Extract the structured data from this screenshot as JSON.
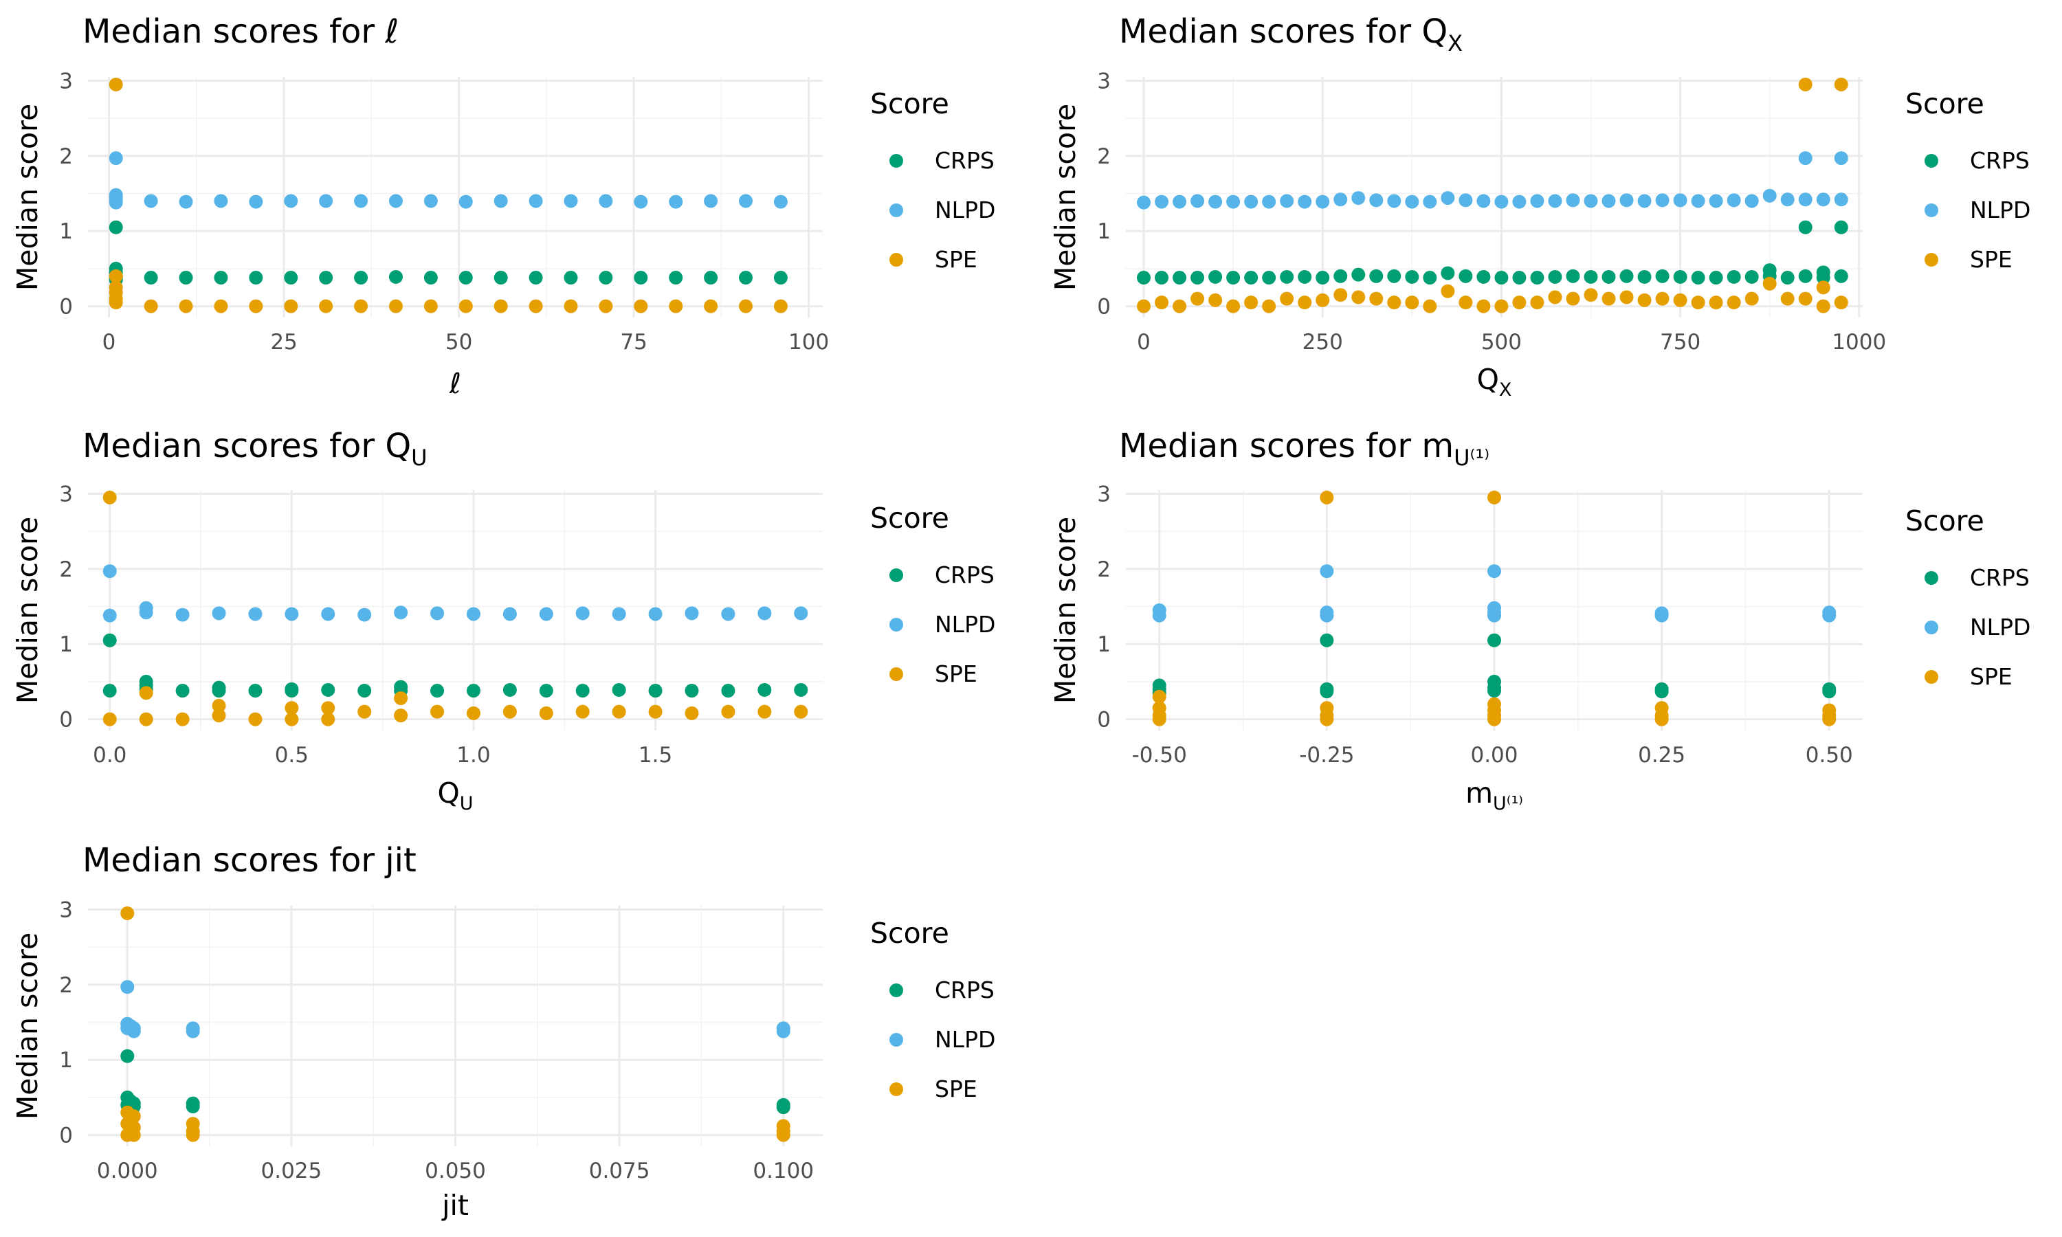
{
  "legend": {
    "title": "Score",
    "items": [
      {
        "label": "CRPS",
        "color": "#009E73"
      },
      {
        "label": "NLPD",
        "color": "#56B4E9"
      },
      {
        "label": "SPE",
        "color": "#E69F00"
      }
    ]
  },
  "chart_data": [
    {
      "type": "scatter",
      "title": "Median scores for ℓ",
      "title_sub": "",
      "xlabel": "ℓ",
      "xlabel_sub": "",
      "ylabel": "Median score",
      "xlim": [
        -3,
        102
      ],
      "ylim": [
        -0.15,
        3.05
      ],
      "xticks": [
        0,
        25,
        50,
        75,
        100
      ],
      "xtick_labels": [
        "0",
        "25",
        "50",
        "75",
        "100"
      ],
      "yticks": [
        0,
        1,
        2,
        3
      ],
      "ytick_labels": [
        "0",
        "1",
        "2",
        "3"
      ],
      "grid": true,
      "legend_position": "right",
      "series": [
        {
          "name": "CRPS",
          "x": [
            1,
            1,
            1,
            1,
            1,
            1,
            6,
            11,
            16,
            21,
            26,
            31,
            36,
            41,
            46,
            51,
            56,
            61,
            66,
            71,
            76,
            81,
            86,
            91,
            96
          ],
          "y": [
            1.05,
            0.5,
            0.45,
            0.4,
            0.38,
            0.35,
            0.38,
            0.38,
            0.38,
            0.38,
            0.38,
            0.38,
            0.38,
            0.39,
            0.38,
            0.38,
            0.38,
            0.38,
            0.38,
            0.38,
            0.38,
            0.38,
            0.38,
            0.38,
            0.38
          ]
        },
        {
          "name": "NLPD",
          "x": [
            1,
            1,
            1,
            1,
            1,
            6,
            11,
            16,
            21,
            26,
            31,
            36,
            41,
            46,
            51,
            56,
            61,
            66,
            71,
            76,
            81,
            86,
            91,
            96
          ],
          "y": [
            1.97,
            1.48,
            1.45,
            1.42,
            1.38,
            1.4,
            1.39,
            1.4,
            1.39,
            1.4,
            1.4,
            1.4,
            1.4,
            1.4,
            1.39,
            1.4,
            1.4,
            1.4,
            1.4,
            1.39,
            1.39,
            1.4,
            1.4,
            1.39
          ]
        },
        {
          "name": "SPE",
          "x": [
            1,
            1,
            1,
            1,
            1,
            1,
            6,
            11,
            16,
            21,
            26,
            31,
            36,
            41,
            46,
            51,
            56,
            61,
            66,
            71,
            76,
            81,
            86,
            91,
            96
          ],
          "y": [
            2.95,
            0.4,
            0.25,
            0.18,
            0.1,
            0.05,
            0.0,
            0.0,
            0.0,
            0.0,
            0.0,
            0.0,
            0.0,
            0.0,
            0.0,
            0.0,
            0.0,
            0.0,
            0.0,
            0.0,
            0.0,
            0.0,
            0.0,
            0.0,
            0.0
          ]
        }
      ]
    },
    {
      "type": "scatter",
      "title": "Median scores for Q",
      "title_sub": "X",
      "xlabel": "Q",
      "xlabel_sub": "X",
      "ylabel": "Median score",
      "xlim": [
        -25,
        1005
      ],
      "ylim": [
        -0.15,
        3.05
      ],
      "xticks": [
        0,
        250,
        500,
        750,
        1000
      ],
      "xtick_labels": [
        "0",
        "250",
        "500",
        "750",
        "1000"
      ],
      "yticks": [
        0,
        1,
        2,
        3
      ],
      "ytick_labels": [
        "0",
        "1",
        "2",
        "3"
      ],
      "grid": true,
      "legend_position": "right",
      "series": [
        {
          "name": "CRPS",
          "x": [
            0,
            25,
            50,
            75,
            100,
            125,
            150,
            175,
            200,
            225,
            250,
            275,
            300,
            325,
            350,
            375,
            400,
            425,
            450,
            475,
            500,
            525,
            550,
            575,
            600,
            625,
            650,
            675,
            700,
            725,
            750,
            775,
            800,
            825,
            850,
            875,
            875,
            900,
            925,
            925,
            950,
            950,
            975,
            975
          ],
          "y": [
            0.38,
            0.38,
            0.38,
            0.38,
            0.39,
            0.38,
            0.38,
            0.38,
            0.39,
            0.39,
            0.38,
            0.4,
            0.42,
            0.4,
            0.4,
            0.39,
            0.38,
            0.44,
            0.4,
            0.39,
            0.38,
            0.38,
            0.38,
            0.39,
            0.4,
            0.39,
            0.39,
            0.4,
            0.39,
            0.4,
            0.39,
            0.38,
            0.38,
            0.39,
            0.39,
            0.48,
            0.4,
            0.38,
            1.05,
            0.4,
            0.45,
            0.38,
            1.05,
            0.4
          ]
        },
        {
          "name": "NLPD",
          "x": [
            0,
            25,
            50,
            75,
            100,
            125,
            150,
            175,
            200,
            225,
            250,
            275,
            300,
            325,
            350,
            375,
            400,
            425,
            450,
            475,
            500,
            525,
            550,
            575,
            600,
            625,
            650,
            675,
            700,
            725,
            750,
            775,
            800,
            825,
            850,
            875,
            900,
            925,
            925,
            950,
            975,
            975
          ],
          "y": [
            1.38,
            1.39,
            1.39,
            1.4,
            1.39,
            1.39,
            1.39,
            1.39,
            1.4,
            1.39,
            1.39,
            1.42,
            1.44,
            1.41,
            1.4,
            1.39,
            1.39,
            1.44,
            1.41,
            1.4,
            1.39,
            1.39,
            1.4,
            1.4,
            1.41,
            1.4,
            1.4,
            1.41,
            1.4,
            1.41,
            1.41,
            1.4,
            1.4,
            1.41,
            1.4,
            1.47,
            1.42,
            1.97,
            1.42,
            1.42,
            1.97,
            1.42
          ]
        },
        {
          "name": "SPE",
          "x": [
            0,
            25,
            50,
            75,
            100,
            125,
            150,
            175,
            200,
            225,
            250,
            275,
            300,
            325,
            350,
            375,
            400,
            425,
            450,
            475,
            500,
            525,
            550,
            575,
            600,
            625,
            650,
            675,
            700,
            725,
            750,
            775,
            800,
            825,
            850,
            875,
            900,
            925,
            925,
            950,
            950,
            975,
            975
          ],
          "y": [
            0.0,
            0.05,
            0.0,
            0.1,
            0.08,
            0.0,
            0.05,
            0.0,
            0.1,
            0.05,
            0.08,
            0.15,
            0.12,
            0.1,
            0.05,
            0.05,
            0.0,
            0.2,
            0.05,
            0.0,
            0.0,
            0.05,
            0.05,
            0.12,
            0.1,
            0.15,
            0.1,
            0.12,
            0.08,
            0.1,
            0.08,
            0.05,
            0.05,
            0.05,
            0.1,
            0.3,
            0.1,
            2.95,
            0.1,
            0.25,
            0.0,
            2.95,
            0.05
          ]
        }
      ]
    },
    {
      "type": "scatter",
      "title": "Median scores for Q",
      "title_sub": "U",
      "xlabel": "Q",
      "xlabel_sub": "U",
      "ylabel": "Median score",
      "xlim": [
        -0.06,
        1.96
      ],
      "ylim": [
        -0.15,
        3.05
      ],
      "xticks": [
        0.0,
        0.5,
        1.0,
        1.5
      ],
      "xtick_labels": [
        "0.0",
        "0.5",
        "1.0",
        "1.5"
      ],
      "yticks": [
        0,
        1,
        2,
        3
      ],
      "ytick_labels": [
        "0",
        "1",
        "2",
        "3"
      ],
      "grid": true,
      "legend_position": "right",
      "series": [
        {
          "name": "CRPS",
          "x": [
            0.0,
            0.0,
            0.1,
            0.1,
            0.1,
            0.2,
            0.3,
            0.3,
            0.4,
            0.5,
            0.5,
            0.6,
            0.7,
            0.8,
            0.8,
            0.9,
            1.0,
            1.1,
            1.2,
            1.3,
            1.4,
            1.5,
            1.6,
            1.7,
            1.8,
            1.9
          ],
          "y": [
            1.05,
            0.38,
            0.5,
            0.45,
            0.4,
            0.38,
            0.42,
            0.38,
            0.38,
            0.4,
            0.38,
            0.39,
            0.38,
            0.43,
            0.38,
            0.38,
            0.38,
            0.39,
            0.38,
            0.38,
            0.39,
            0.38,
            0.38,
            0.38,
            0.39,
            0.39
          ]
        },
        {
          "name": "NLPD",
          "x": [
            0.0,
            0.0,
            0.1,
            0.1,
            0.2,
            0.3,
            0.4,
            0.5,
            0.6,
            0.7,
            0.8,
            0.9,
            1.0,
            1.1,
            1.2,
            1.3,
            1.4,
            1.5,
            1.6,
            1.7,
            1.8,
            1.9
          ],
          "y": [
            1.97,
            1.38,
            1.48,
            1.42,
            1.39,
            1.41,
            1.4,
            1.4,
            1.4,
            1.39,
            1.42,
            1.41,
            1.4,
            1.4,
            1.4,
            1.41,
            1.4,
            1.4,
            1.41,
            1.4,
            1.41,
            1.41
          ]
        },
        {
          "name": "SPE",
          "x": [
            0.0,
            0.0,
            0.1,
            0.1,
            0.2,
            0.3,
            0.3,
            0.4,
            0.5,
            0.5,
            0.6,
            0.6,
            0.7,
            0.8,
            0.8,
            0.9,
            1.0,
            1.1,
            1.2,
            1.3,
            1.4,
            1.5,
            1.6,
            1.7,
            1.8,
            1.9
          ],
          "y": [
            2.95,
            0.0,
            0.35,
            0.0,
            0.0,
            0.18,
            0.05,
            0.0,
            0.15,
            0.0,
            0.15,
            0.0,
            0.1,
            0.28,
            0.05,
            0.1,
            0.08,
            0.1,
            0.08,
            0.1,
            0.1,
            0.1,
            0.08,
            0.1,
            0.1,
            0.1
          ]
        }
      ]
    },
    {
      "type": "scatter",
      "title": "Median scores for m",
      "title_sub": "U⁽¹⁾",
      "xlabel": "m",
      "xlabel_sub": "U⁽¹⁾",
      "ylabel": "Median score",
      "xlim": [
        -0.55,
        0.55
      ],
      "ylim": [
        -0.15,
        3.05
      ],
      "xticks": [
        -0.5,
        -0.25,
        0.0,
        0.25,
        0.5
      ],
      "xtick_labels": [
        "-0.50",
        "-0.25",
        "0.00",
        "0.25",
        "0.50"
      ],
      "yticks": [
        0,
        1,
        2,
        3
      ],
      "ytick_labels": [
        "0",
        "1",
        "2",
        "3"
      ],
      "grid": true,
      "legend_position": "right",
      "series": [
        {
          "name": "CRPS",
          "x": [
            -0.5,
            -0.5,
            -0.5,
            -0.25,
            -0.25,
            -0.25,
            0.0,
            0.0,
            0.0,
            0.0,
            0.25,
            0.25,
            0.5,
            0.5
          ],
          "y": [
            0.45,
            0.4,
            0.35,
            1.05,
            0.4,
            0.37,
            1.05,
            0.5,
            0.42,
            0.38,
            0.4,
            0.37,
            0.4,
            0.37
          ]
        },
        {
          "name": "NLPD",
          "x": [
            -0.5,
            -0.5,
            -0.25,
            -0.25,
            -0.25,
            0.0,
            0.0,
            0.0,
            0.0,
            0.25,
            0.25,
            0.5,
            0.5
          ],
          "y": [
            1.45,
            1.38,
            1.97,
            1.42,
            1.38,
            1.97,
            1.48,
            1.42,
            1.38,
            1.41,
            1.38,
            1.42,
            1.38
          ]
        },
        {
          "name": "SPE",
          "x": [
            -0.5,
            -0.5,
            -0.5,
            -0.5,
            -0.25,
            -0.25,
            -0.25,
            -0.25,
            0.0,
            0.0,
            0.0,
            0.0,
            0.0,
            0.25,
            0.25,
            0.25,
            0.5,
            0.5,
            0.5
          ],
          "y": [
            0.3,
            0.15,
            0.05,
            0.0,
            2.95,
            0.15,
            0.05,
            0.0,
            2.95,
            0.2,
            0.12,
            0.05,
            0.0,
            0.15,
            0.05,
            0.0,
            0.12,
            0.05,
            0.0
          ]
        }
      ]
    },
    {
      "type": "scatter",
      "title": "Median scores for jit",
      "title_sub": "",
      "xlabel": "jit",
      "xlabel_sub": "",
      "ylabel": "Median score",
      "xlim": [
        -0.006,
        0.106
      ],
      "ylim": [
        -0.15,
        3.05
      ],
      "xticks": [
        0.0,
        0.025,
        0.05,
        0.075,
        0.1
      ],
      "xtick_labels": [
        "0.000",
        "0.025",
        "0.050",
        "0.075",
        "0.100"
      ],
      "yticks": [
        0,
        1,
        2,
        3
      ],
      "ytick_labels": [
        "0",
        "1",
        "2",
        "3"
      ],
      "grid": true,
      "legend_position": "right",
      "series": [
        {
          "name": "CRPS",
          "x": [
            0.0,
            0.0,
            0.0,
            0.0005,
            0.001,
            0.001,
            0.01,
            0.01,
            0.1,
            0.1
          ],
          "y": [
            1.05,
            0.5,
            0.4,
            0.45,
            0.42,
            0.38,
            0.42,
            0.38,
            0.4,
            0.37
          ]
        },
        {
          "name": "NLPD",
          "x": [
            0.0,
            0.0,
            0.0,
            0.0005,
            0.001,
            0.001,
            0.01,
            0.01,
            0.1,
            0.1
          ],
          "y": [
            1.97,
            1.48,
            1.42,
            1.45,
            1.42,
            1.38,
            1.42,
            1.38,
            1.42,
            1.38
          ]
        },
        {
          "name": "SPE",
          "x": [
            0.0,
            0.0,
            0.0,
            0.0,
            0.0005,
            0.001,
            0.001,
            0.001,
            0.01,
            0.01,
            0.01,
            0.1,
            0.1,
            0.1
          ],
          "y": [
            2.95,
            0.3,
            0.15,
            0.0,
            0.2,
            0.25,
            0.1,
            0.0,
            0.15,
            0.05,
            0.0,
            0.12,
            0.05,
            0.0
          ]
        }
      ]
    }
  ]
}
